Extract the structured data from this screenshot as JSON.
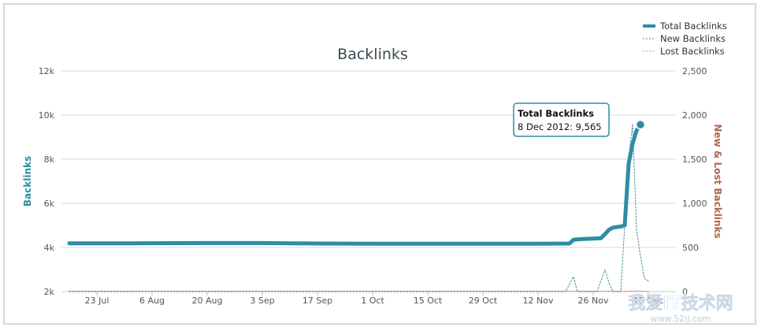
{
  "chart_data": {
    "type": "line",
    "title": "Backlinks",
    "y_left": {
      "label": "Backlinks",
      "ylim": [
        2000,
        12000
      ],
      "ticks": [
        2000,
        4000,
        6000,
        8000,
        10000,
        12000
      ],
      "tick_labels": [
        "2k",
        "4k",
        "6k",
        "8k",
        "10k",
        "12k"
      ]
    },
    "y_right": {
      "label": "New & Lost Backlinks",
      "ylim": [
        0,
        2500
      ],
      "ticks": [
        0,
        500,
        1000,
        1500,
        2000,
        2500
      ],
      "tick_labels": [
        "0",
        "500",
        "1,000",
        "1,500",
        "2,000",
        "2,500"
      ]
    },
    "x": {
      "range": [
        "2012-07-14",
        "2012-12-17"
      ],
      "ticks": [
        "2012-07-23",
        "2012-08-06",
        "2012-08-20",
        "2012-09-03",
        "2012-09-17",
        "2012-10-01",
        "2012-10-15",
        "2012-10-29",
        "2012-11-12",
        "2012-11-26",
        "2012-12-10"
      ],
      "tick_labels": [
        "23 Jul",
        "6 Aug",
        "20 Aug",
        "3 Sep",
        "17 Sep",
        "1 Oct",
        "15 Oct",
        "29 Oct",
        "12 Nov",
        "26 Nov",
        "10 Dec"
      ]
    },
    "grid": true,
    "legend_position": "top-right",
    "series": [
      {
        "name": "Total Backlinks",
        "axis": "left",
        "color": "#2d8da3",
        "style": "solid",
        "points": [
          [
            "2012-07-16",
            4190
          ],
          [
            "2012-08-01",
            4190
          ],
          [
            "2012-08-20",
            4200
          ],
          [
            "2012-09-03",
            4200
          ],
          [
            "2012-09-17",
            4180
          ],
          [
            "2012-10-01",
            4170
          ],
          [
            "2012-10-15",
            4170
          ],
          [
            "2012-10-29",
            4170
          ],
          [
            "2012-11-12",
            4170
          ],
          [
            "2012-11-20",
            4180
          ],
          [
            "2012-11-21",
            4350
          ],
          [
            "2012-11-23",
            4380
          ],
          [
            "2012-11-26",
            4400
          ],
          [
            "2012-11-28",
            4420
          ],
          [
            "2012-11-30",
            4800
          ],
          [
            "2012-12-01",
            4900
          ],
          [
            "2012-12-03",
            4950
          ],
          [
            "2012-12-04",
            5000
          ],
          [
            "2012-12-05",
            7800
          ],
          [
            "2012-12-06",
            8700
          ],
          [
            "2012-12-07",
            9300
          ],
          [
            "2012-12-08",
            9565
          ]
        ]
      },
      {
        "name": "New Backlinks",
        "axis": "right",
        "color": "#4a8fa0",
        "style": "dashed",
        "points": [
          [
            "2012-07-16",
            0
          ],
          [
            "2012-11-19",
            0
          ],
          [
            "2012-11-21",
            170
          ],
          [
            "2012-11-22",
            0
          ],
          [
            "2012-11-27",
            0
          ],
          [
            "2012-11-29",
            250
          ],
          [
            "2012-11-30",
            100
          ],
          [
            "2012-12-01",
            0
          ],
          [
            "2012-12-03",
            0
          ],
          [
            "2012-12-05",
            1500
          ],
          [
            "2012-12-06",
            1900
          ],
          [
            "2012-12-07",
            700
          ],
          [
            "2012-12-08",
            400
          ],
          [
            "2012-12-09",
            150
          ],
          [
            "2012-12-10",
            120
          ]
        ]
      },
      {
        "name": "Lost Backlinks",
        "axis": "right",
        "color": "#d98c6c",
        "style": "dashed",
        "points": [
          [
            "2012-07-16",
            5
          ],
          [
            "2012-12-10",
            5
          ]
        ]
      }
    ],
    "tooltip": {
      "title": "Total Backlinks",
      "body": "8 Dec 2012: 9,565",
      "date": "2012-12-08",
      "value": 9565
    }
  },
  "watermark": {
    "text": "我爱IT技术网",
    "url": "www.52ij.com"
  }
}
